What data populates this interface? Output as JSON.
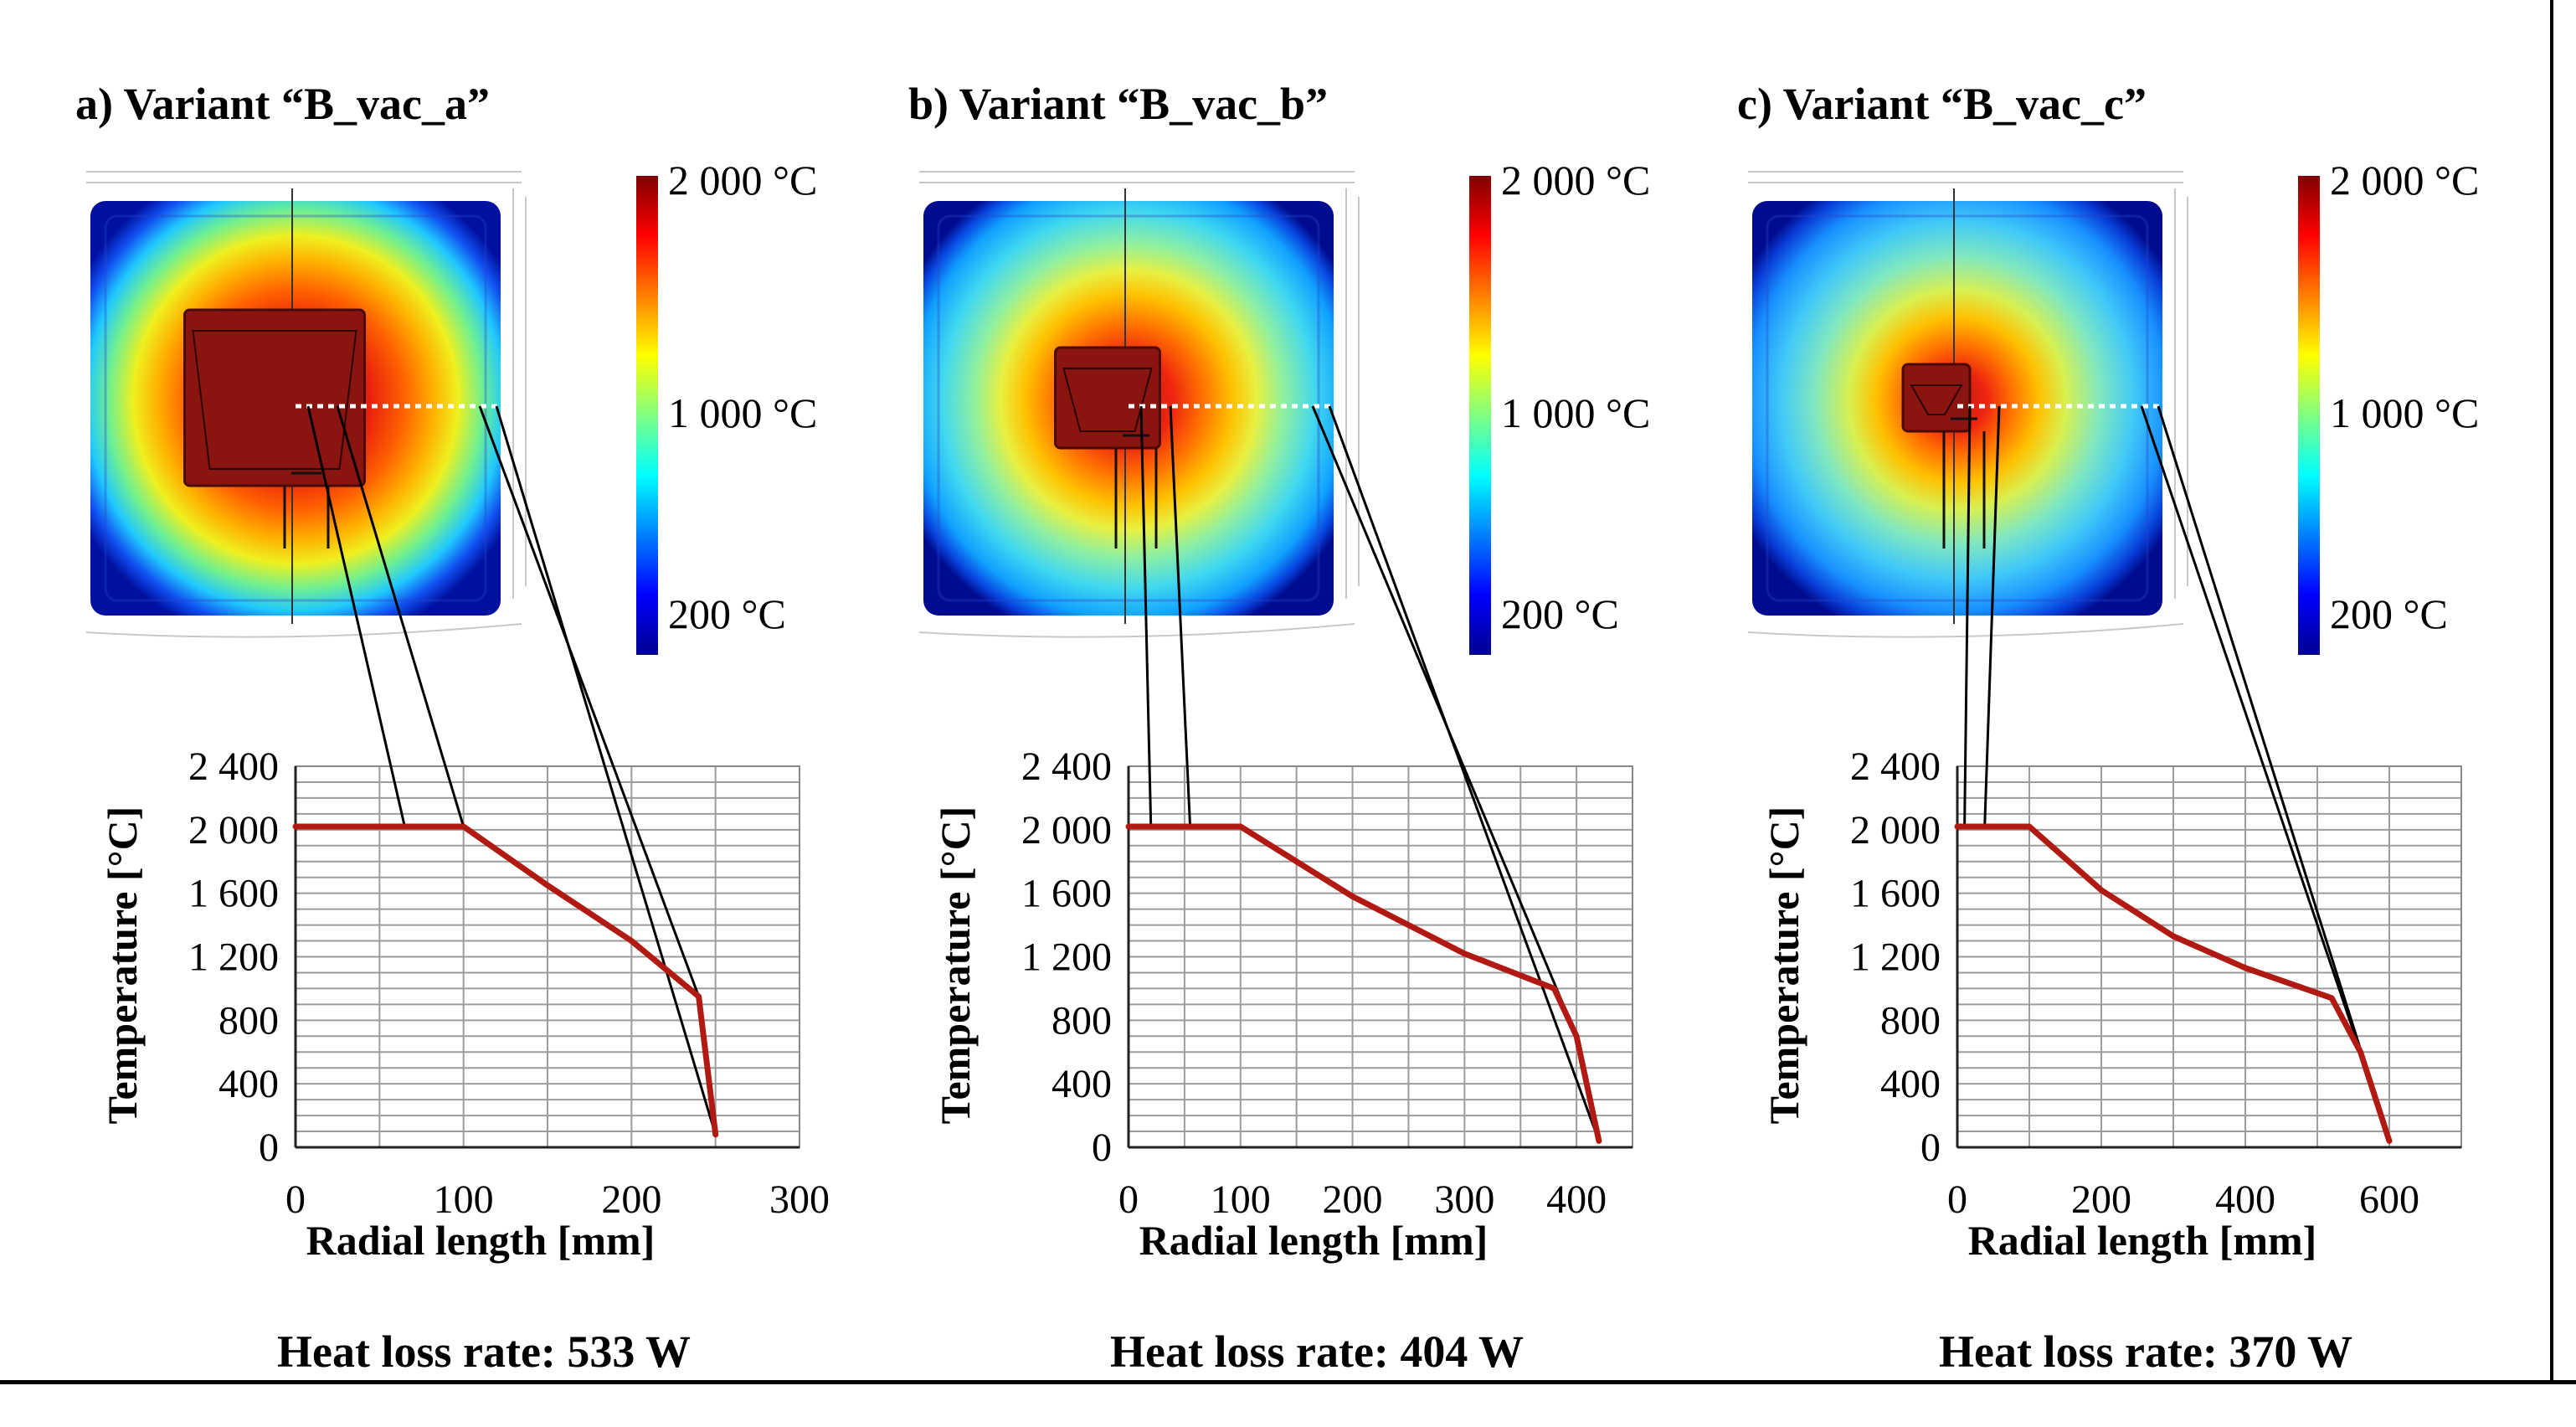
{
  "legend": {
    "max_label": "2 000 °C",
    "mid_label": "1 000 °C",
    "min_label": "200 °C"
  },
  "colors": {
    "curve": "#b11a12",
    "grid": "#9c9c9c",
    "axis": "#222222"
  },
  "chart_data": [
    {
      "type": "line",
      "title": "a) Variant “B_vac_a”",
      "xlabel": "Radial length [mm]",
      "ylabel": "Temperature [°C]",
      "xlim": [
        0,
        300
      ],
      "ylim": [
        0,
        2400
      ],
      "xticks": [
        0,
        100,
        200,
        300
      ],
      "xtick_labels": [
        "0",
        "100",
        "200",
        "300"
      ],
      "yticks": [
        0,
        400,
        800,
        1200,
        1600,
        2000,
        2400
      ],
      "ytick_labels": [
        "0",
        "400",
        "800",
        "1 200",
        "1 600",
        "2 000",
        "2 400"
      ],
      "series": [
        {
          "name": "Temperature",
          "x": [
            0,
            100,
            150,
            200,
            240,
            250
          ],
          "y": [
            2020,
            2020,
            1650,
            1300,
            950,
            80
          ]
        }
      ],
      "core_radius": 100,
      "heat_loss_label": "Heat loss rate: 533 W"
    },
    {
      "type": "line",
      "title": "b) Variant “B_vac_b”",
      "xlabel": "Radial length [mm]",
      "ylabel": "Temperature [°C]",
      "xlim": [
        0,
        450
      ],
      "ylim": [
        0,
        2400
      ],
      "xticks": [
        0,
        100,
        200,
        300,
        400
      ],
      "xtick_labels": [
        "0",
        "100",
        "200",
        "300",
        "400"
      ],
      "yticks": [
        0,
        400,
        800,
        1200,
        1600,
        2000,
        2400
      ],
      "ytick_labels": [
        "0",
        "400",
        "800",
        "1 200",
        "1 600",
        "2 000",
        "2 400"
      ],
      "series": [
        {
          "name": "Temperature",
          "x": [
            0,
            100,
            200,
            300,
            380,
            400,
            420
          ],
          "y": [
            2020,
            2020,
            1580,
            1220,
            1000,
            700,
            40
          ]
        }
      ],
      "core_radius": 55,
      "heat_loss_label": "Heat loss rate: 404 W"
    },
    {
      "type": "line",
      "title": "c) Variant “B_vac_c”",
      "xlabel": "Radial length [mm]",
      "ylabel": "Temperature [°C]",
      "xlim": [
        0,
        700
      ],
      "ylim": [
        0,
        2400
      ],
      "xticks": [
        0,
        200,
        400,
        600
      ],
      "xtick_labels": [
        "0",
        "200",
        "400",
        "600"
      ],
      "yticks": [
        0,
        400,
        800,
        1200,
        1600,
        2000,
        2400
      ],
      "ytick_labels": [
        "0",
        "400",
        "800",
        "1 200",
        "1 600",
        "2 000",
        "2 400"
      ],
      "series": [
        {
          "name": "Temperature",
          "x": [
            0,
            100,
            200,
            300,
            400,
            520,
            560,
            600
          ],
          "y": [
            2020,
            2020,
            1620,
            1330,
            1130,
            940,
            600,
            40
          ]
        }
      ],
      "core_radius": 38,
      "heat_loss_label": "Heat loss rate: 370 W"
    }
  ]
}
